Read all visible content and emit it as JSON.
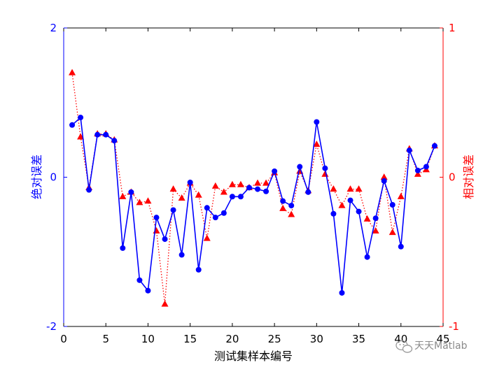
{
  "chart_data": {
    "type": "line",
    "title": "",
    "xlabel": "测试集样本编号",
    "xlim": [
      0,
      45
    ],
    "xticks": [
      0,
      5,
      10,
      15,
      20,
      25,
      30,
      35,
      40,
      45
    ],
    "yaxis_left": {
      "label": "绝对误差",
      "lim": [
        -2,
        2
      ],
      "ticks": [
        -2,
        0,
        2
      ],
      "color": "#0000ff"
    },
    "yaxis_right": {
      "label": "相对误差",
      "lim": [
        -1,
        1
      ],
      "ticks": [
        -1,
        0,
        1
      ],
      "color": "#ff0000"
    },
    "grid": false,
    "legend": "none",
    "x": [
      1,
      2,
      3,
      4,
      5,
      6,
      7,
      8,
      9,
      10,
      11,
      12,
      13,
      14,
      15,
      16,
      17,
      18,
      19,
      20,
      21,
      22,
      23,
      24,
      25,
      26,
      27,
      28,
      29,
      30,
      31,
      32,
      33,
      34,
      35,
      36,
      37,
      38,
      39,
      40,
      41,
      42,
      43,
      44
    ],
    "series": [
      {
        "axis": "left",
        "style": "solid-circle",
        "color": "#0000ff",
        "values": [
          0.7,
          0.8,
          -0.17,
          0.57,
          0.57,
          0.49,
          -0.95,
          -0.2,
          -1.38,
          -1.52,
          -0.54,
          -0.83,
          -0.44,
          -1.04,
          -0.07,
          -1.24,
          -0.41,
          -0.54,
          -0.48,
          -0.26,
          -0.26,
          -0.14,
          -0.16,
          -0.19,
          0.08,
          -0.32,
          -0.38,
          0.14,
          -0.2,
          0.74,
          0.12,
          -0.49,
          -1.55,
          -0.31,
          -0.46,
          -1.07,
          -0.55,
          -0.05,
          -0.37,
          -0.93,
          0.36,
          0.09,
          0.14,
          0.42
        ]
      },
      {
        "axis": "right",
        "style": "dotted-triangle",
        "color": "#ff0000",
        "values": [
          0.7,
          0.27,
          -0.07,
          0.29,
          0.29,
          0.25,
          -0.13,
          -0.1,
          -0.17,
          -0.16,
          -0.36,
          -0.85,
          -0.08,
          -0.14,
          -0.04,
          -0.12,
          -0.41,
          -0.06,
          -0.1,
          -0.05,
          -0.05,
          -0.07,
          -0.04,
          -0.04,
          0.03,
          -0.21,
          -0.25,
          0.04,
          -0.09,
          0.22,
          0.02,
          -0.08,
          -0.19,
          -0.08,
          -0.08,
          -0.28,
          -0.36,
          0.0,
          -0.37,
          -0.13,
          0.19,
          0.02,
          0.05,
          0.21
        ]
      }
    ]
  },
  "watermark": {
    "text": "天天Matlab",
    "icon": "wechat-icon"
  }
}
